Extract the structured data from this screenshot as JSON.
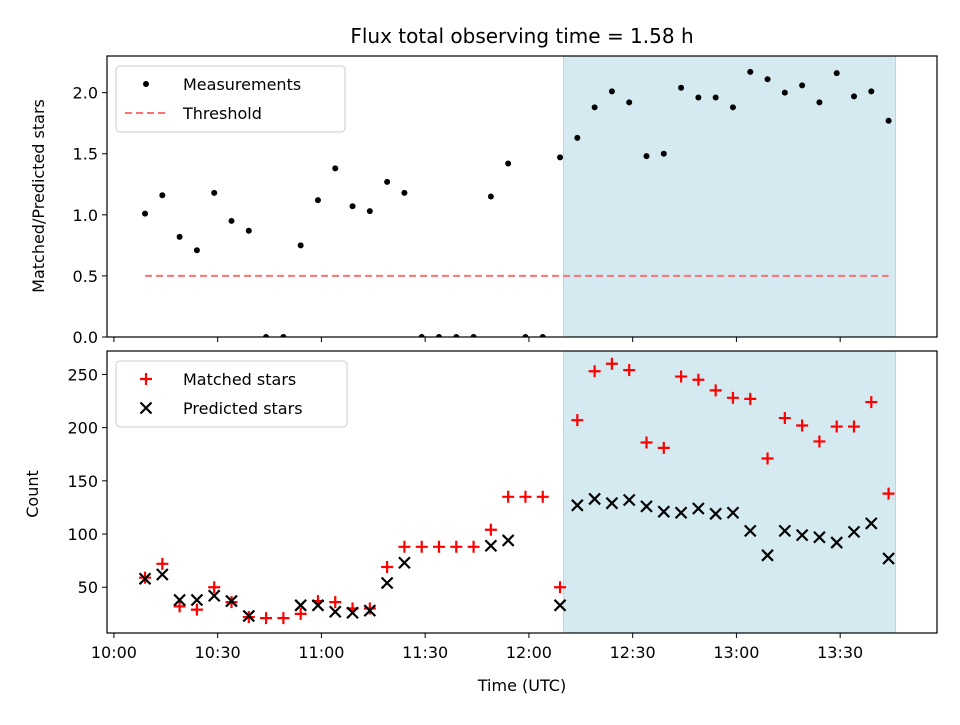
{
  "chart_data": [
    {
      "type": "scatter",
      "title": "Flux total observing time = 1.58 h",
      "xlabel": "",
      "ylabel": "Matched/Predicted stars",
      "xlim": [
        "09:58",
        "13:58"
      ],
      "ylim": [
        0,
        2.3
      ],
      "yticks": [
        "0.0",
        "0.5",
        "1.0",
        "1.5",
        "2.0"
      ],
      "shaded_region": {
        "x_start": "12:10",
        "x_end": "13:46",
        "color": "#d4eaf0"
      },
      "legend": {
        "placement": "top-left",
        "entries": [
          "Measurements",
          "Threshold"
        ]
      },
      "series": [
        {
          "name": "Measurements",
          "marker": "dot",
          "color": "#000000",
          "x": [
            "10:09",
            "10:14",
            "10:19",
            "10:24",
            "10:29",
            "10:34",
            "10:39",
            "10:44",
            "10:49",
            "10:54",
            "10:59",
            "11:04",
            "11:09",
            "11:14",
            "11:19",
            "11:24",
            "11:29",
            "11:34",
            "11:39",
            "11:44",
            "11:49",
            "11:54",
            "11:59",
            "12:04",
            "12:09",
            "12:14",
            "12:19",
            "12:24",
            "12:29",
            "12:34",
            "12:39",
            "12:44",
            "12:49",
            "12:54",
            "12:59",
            "13:04",
            "13:09",
            "13:14",
            "13:19",
            "13:24",
            "13:29",
            "13:34",
            "13:39",
            "13:44"
          ],
          "y": [
            1.01,
            1.16,
            0.82,
            0.71,
            1.18,
            0.95,
            0.87,
            0.0,
            0.0,
            0.75,
            1.12,
            1.38,
            1.07,
            1.03,
            1.27,
            1.18,
            0.0,
            0.0,
            0.0,
            0.0,
            1.15,
            1.42,
            0.0,
            0.0,
            1.47,
            1.63,
            1.88,
            2.01,
            1.92,
            1.48,
            1.5,
            2.04,
            1.96,
            1.96,
            1.88,
            2.17,
            2.11,
            2.0,
            2.06,
            1.92,
            2.16,
            1.97,
            2.01,
            1.77
          ]
        },
        {
          "name": "Threshold",
          "marker": "dashed-line",
          "color": "#ff7070",
          "x": [
            "10:09",
            "13:44"
          ],
          "y": [
            0.5,
            0.5
          ]
        }
      ]
    },
    {
      "type": "scatter",
      "title": "",
      "xlabel": "Time (UTC)",
      "ylabel": "Count",
      "xlim": [
        "09:58",
        "13:58"
      ],
      "ylim": [
        7,
        272
      ],
      "yticks": [
        "50",
        "100",
        "150",
        "200",
        "250"
      ],
      "xticks": [
        "10:00",
        "10:30",
        "11:00",
        "11:30",
        "12:00",
        "12:30",
        "13:00",
        "13:30"
      ],
      "shaded_region": {
        "x_start": "12:10",
        "x_end": "13:46",
        "color": "#d4eaf0"
      },
      "legend": {
        "placement": "top-left",
        "entries": [
          "Matched stars",
          "Predicted stars"
        ]
      },
      "series": [
        {
          "name": "Matched stars",
          "marker": "plus",
          "color": "#ff0000",
          "x": [
            "10:09",
            "10:14",
            "10:19",
            "10:24",
            "10:29",
            "10:34",
            "10:39",
            "10:44",
            "10:49",
            "10:54",
            "10:59",
            "11:04",
            "11:09",
            "11:14",
            "11:19",
            "11:24",
            "11:29",
            "11:34",
            "11:39",
            "11:44",
            "11:49",
            "11:54",
            "11:59",
            "12:04",
            "12:09",
            "12:14",
            "12:19",
            "12:24",
            "12:29",
            "12:34",
            "12:39",
            "12:44",
            "12:49",
            "12:54",
            "12:59",
            "13:04",
            "13:09",
            "13:14",
            "13:19",
            "13:24",
            "13:29",
            "13:34",
            "13:39",
            "13:44"
          ],
          "y": [
            59,
            72,
            32,
            29,
            50,
            36,
            22,
            21,
            21,
            25,
            37,
            36,
            30,
            30,
            69,
            88,
            88,
            88,
            88,
            88,
            104,
            135,
            135,
            135,
            50,
            207,
            253,
            260,
            254,
            186,
            181,
            248,
            245,
            235,
            228,
            227,
            171,
            209,
            202,
            187,
            201,
            201,
            224,
            138
          ]
        },
        {
          "name": "Predicted stars",
          "marker": "x",
          "color": "#000000",
          "x": [
            "10:09",
            "10:14",
            "10:19",
            "10:24",
            "10:29",
            "10:34",
            "10:39",
            "10:54",
            "10:59",
            "11:04",
            "11:09",
            "11:14",
            "11:19",
            "11:24",
            "11:49",
            "11:54",
            "12:09",
            "12:14",
            "12:19",
            "12:24",
            "12:29",
            "12:34",
            "12:39",
            "12:44",
            "12:49",
            "12:54",
            "12:59",
            "13:04",
            "13:09",
            "13:14",
            "13:19",
            "13:24",
            "13:29",
            "13:34",
            "13:39",
            "13:44"
          ],
          "y": [
            58,
            62,
            38,
            38,
            42,
            37,
            23,
            33,
            33,
            27,
            26,
            28,
            54,
            73,
            89,
            94,
            33,
            127,
            133,
            129,
            132,
            126,
            121,
            120,
            124,
            119,
            120,
            103,
            80,
            103,
            99,
            97,
            92,
            102,
            110,
            77
          ]
        }
      ]
    }
  ]
}
